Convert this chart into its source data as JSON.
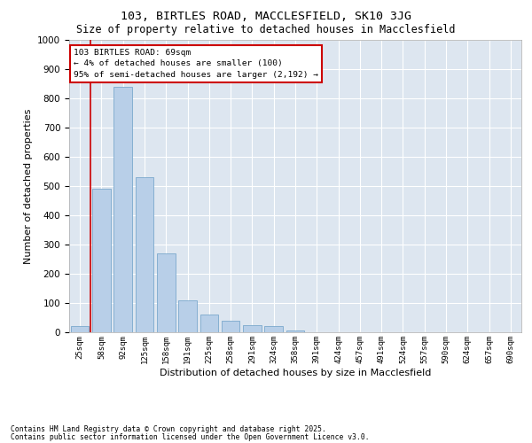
{
  "title1": "103, BIRTLES ROAD, MACCLESFIELD, SK10 3JG",
  "title2": "Size of property relative to detached houses in Macclesfield",
  "xlabel": "Distribution of detached houses by size in Macclesfield",
  "ylabel": "Number of detached properties",
  "footnote1": "Contains HM Land Registry data © Crown copyright and database right 2025.",
  "footnote2": "Contains public sector information licensed under the Open Government Licence v3.0.",
  "annotation_line1": "103 BIRTLES ROAD: 69sqm",
  "annotation_line2": "← 4% of detached houses are smaller (100)",
  "annotation_line3": "95% of semi-detached houses are larger (2,192) →",
  "bar_color": "#b8cfe8",
  "bar_edge_color": "#7aa8cc",
  "background_color": "#dde6f0",
  "red_line_color": "#cc0000",
  "ylim": [
    0,
    1000
  ],
  "yticks": [
    0,
    100,
    200,
    300,
    400,
    500,
    600,
    700,
    800,
    900,
    1000
  ],
  "categories": [
    "25sqm",
    "58sqm",
    "92sqm",
    "125sqm",
    "158sqm",
    "191sqm",
    "225sqm",
    "258sqm",
    "291sqm",
    "324sqm",
    "358sqm",
    "391sqm",
    "424sqm",
    "457sqm",
    "491sqm",
    "524sqm",
    "557sqm",
    "590sqm",
    "624sqm",
    "657sqm",
    "690sqm"
  ],
  "values": [
    20,
    490,
    840,
    530,
    270,
    110,
    60,
    40,
    25,
    20,
    5,
    0,
    0,
    0,
    0,
    0,
    0,
    0,
    0,
    0,
    0
  ],
  "red_line_index": 1.5
}
